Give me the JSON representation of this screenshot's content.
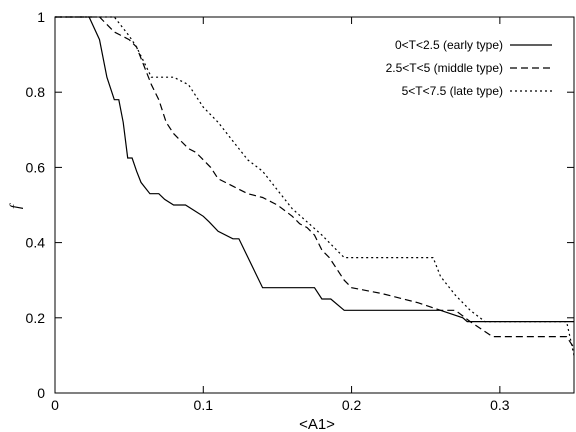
{
  "chart_data": {
    "type": "line",
    "title": "",
    "xlabel": "<A1>",
    "ylabel": "f",
    "xlim": [
      0,
      0.35
    ],
    "ylim": [
      0,
      1
    ],
    "xticks": [
      0,
      0.1,
      0.2,
      0.3
    ],
    "xtick_labels": [
      "0",
      "0.1",
      "0.2",
      "0.3"
    ],
    "yticks": [
      0,
      0.2,
      0.4,
      0.6,
      0.8,
      1
    ],
    "ytick_labels": [
      "0",
      "0.2",
      "0.4",
      "0.6",
      "0.8",
      "1"
    ],
    "grid": false,
    "legend_position": "top-right",
    "series": [
      {
        "name": "0<T<2.5 (early type)",
        "dash": "solid",
        "color": "#000000",
        "x": [
          0,
          0.023,
          0.03,
          0.035,
          0.04,
          0.043,
          0.046,
          0.049,
          0.052,
          0.055,
          0.058,
          0.061,
          0.064,
          0.07,
          0.074,
          0.08,
          0.088,
          0.094,
          0.1,
          0.104,
          0.11,
          0.12,
          0.124,
          0.14,
          0.16,
          0.175,
          0.18,
          0.186,
          0.195,
          0.26,
          0.275,
          0.278,
          0.35
        ],
        "y": [
          1,
          1,
          0.94,
          0.84,
          0.78,
          0.78,
          0.72,
          0.625,
          0.625,
          0.59,
          0.56,
          0.545,
          0.53,
          0.53,
          0.515,
          0.5,
          0.5,
          0.485,
          0.47,
          0.455,
          0.43,
          0.41,
          0.41,
          0.28,
          0.28,
          0.28,
          0.25,
          0.25,
          0.22,
          0.22,
          0.2,
          0.19,
          0.19
        ]
      },
      {
        "name": "2.5<T<5 (middle type)",
        "dash": "dashed",
        "color": "#000000",
        "x": [
          0,
          0.03,
          0.04,
          0.05,
          0.055,
          0.06,
          0.065,
          0.07,
          0.075,
          0.08,
          0.085,
          0.09,
          0.095,
          0.1,
          0.105,
          0.11,
          0.12,
          0.13,
          0.14,
          0.15,
          0.16,
          0.165,
          0.17,
          0.175,
          0.18,
          0.185,
          0.195,
          0.2,
          0.22,
          0.245,
          0.26,
          0.27,
          0.28,
          0.295,
          0.345,
          0.35
        ],
        "y": [
          1,
          1,
          0.96,
          0.94,
          0.92,
          0.87,
          0.82,
          0.78,
          0.72,
          0.69,
          0.67,
          0.65,
          0.64,
          0.62,
          0.6,
          0.57,
          0.55,
          0.53,
          0.52,
          0.5,
          0.47,
          0.45,
          0.44,
          0.42,
          0.38,
          0.36,
          0.3,
          0.28,
          0.265,
          0.24,
          0.22,
          0.22,
          0.19,
          0.15,
          0.15,
          0.12
        ]
      },
      {
        "name": "5<T<7.5 (late type)",
        "dash": "dotted",
        "color": "#000000",
        "x": [
          0,
          0.04,
          0.05,
          0.055,
          0.06,
          0.065,
          0.07,
          0.08,
          0.09,
          0.095,
          0.1,
          0.11,
          0.12,
          0.13,
          0.14,
          0.15,
          0.16,
          0.17,
          0.18,
          0.19,
          0.195,
          0.2,
          0.255,
          0.26,
          0.27,
          0.28,
          0.29,
          0.345,
          0.35
        ],
        "y": [
          1,
          1,
          0.95,
          0.92,
          0.88,
          0.84,
          0.84,
          0.84,
          0.82,
          0.79,
          0.76,
          0.72,
          0.67,
          0.62,
          0.59,
          0.54,
          0.49,
          0.455,
          0.42,
          0.38,
          0.36,
          0.36,
          0.36,
          0.31,
          0.26,
          0.22,
          0.19,
          0.19,
          0.1
        ]
      }
    ]
  }
}
